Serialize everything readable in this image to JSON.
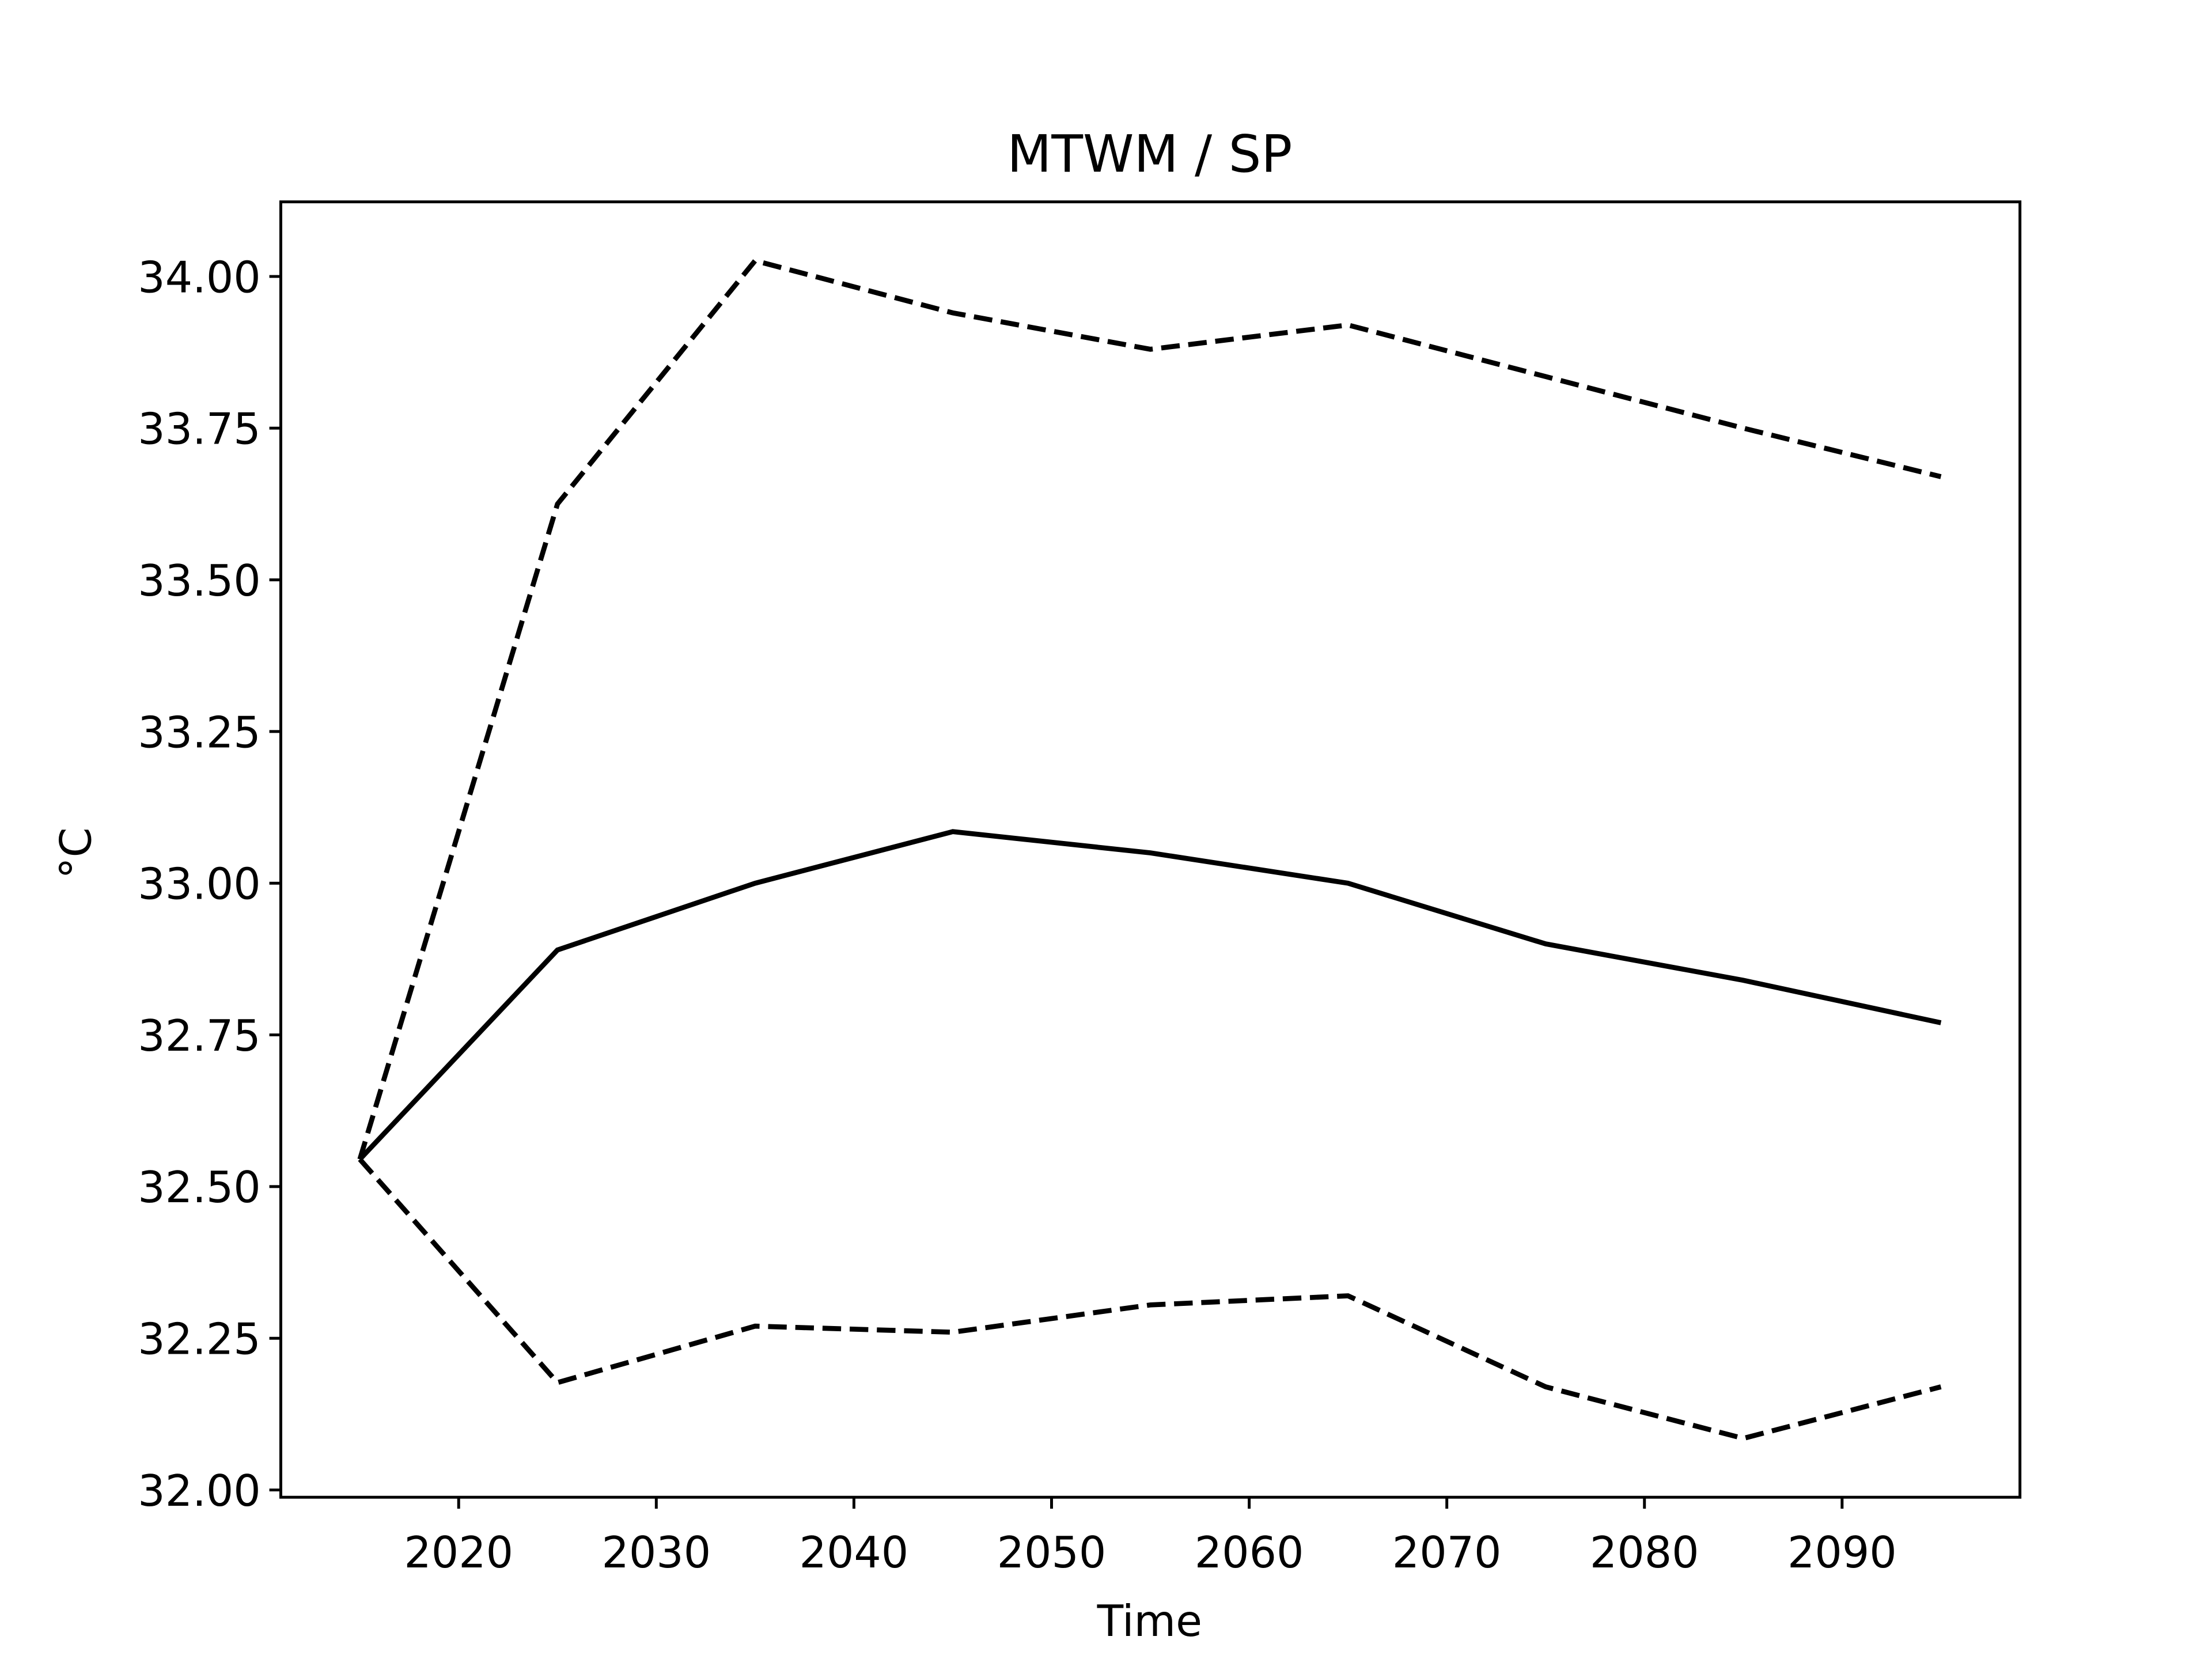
{
  "chart_data": {
    "type": "line",
    "title": "MTWM / SP",
    "x_label": "Time",
    "y_label": "°C",
    "x": [
      2015,
      2025,
      2035,
      2045,
      2055,
      2065,
      2075,
      2085,
      2095
    ],
    "series": [
      {
        "color": "#000000",
        "dashed": false,
        "values": [
          32.545,
          32.89,
          33.0,
          33.085,
          33.05,
          33.0,
          32.9,
          32.84,
          32.77
        ]
      },
      {
        "color": "#000000",
        "dashed": true,
        "values": [
          32.545,
          33.625,
          34.026,
          33.94,
          33.88,
          33.92,
          33.835,
          33.75,
          33.67
        ]
      },
      {
        "color": "#000000",
        "dashed": true,
        "values": [
          32.545,
          32.177,
          32.27,
          32.26,
          32.305,
          32.32,
          32.17,
          32.085,
          32.17
        ]
      }
    ],
    "xlim": [
      2011,
      2099
    ],
    "xticks": [
      2020,
      2030,
      2040,
      2050,
      2060,
      2070,
      2080,
      2090
    ],
    "ylim": [
      31.988,
      34.123
    ],
    "yticks": [
      {
        "value": 32,
        "label": "32.00"
      },
      {
        "value": 32.25,
        "label": "32.25"
      },
      {
        "value": 32.5,
        "label": "32.50"
      },
      {
        "value": 32.75,
        "label": "32.75"
      },
      {
        "value": 33,
        "label": "33.00"
      },
      {
        "value": 33.25,
        "label": "33.25"
      },
      {
        "value": 33.5,
        "label": "33.50"
      },
      {
        "value": 33.75,
        "label": "33.75"
      },
      {
        "value": 34,
        "label": "34.00"
      }
    ],
    "grid": false
  }
}
